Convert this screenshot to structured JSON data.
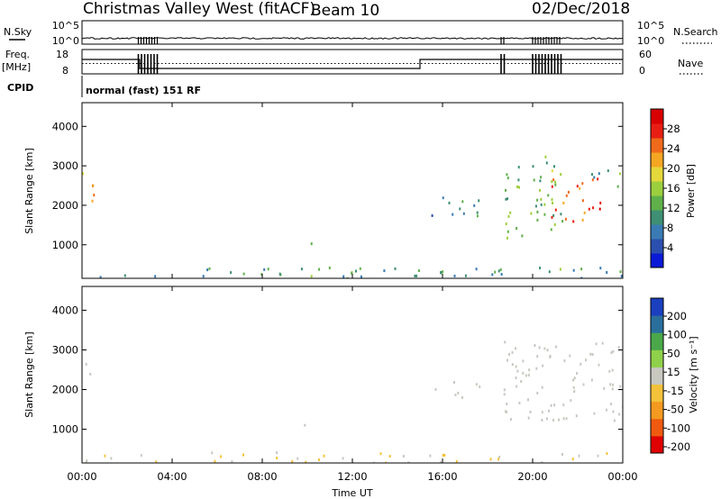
{
  "header": {
    "title": "Christmas Valley West (fitACF)",
    "beam": "Beam 10",
    "date": "02/Dec/2018",
    "nsky_label": "N.Sky",
    "nsearch_label": "N.Search",
    "freq_label_line1": "Freq.",
    "freq_label_line2": "[MHz]",
    "nave_label": "Nave",
    "cpid_label": "CPID",
    "cpid_value": "normal (fast) 151 RF",
    "noise_left_ticks": [
      "10^5",
      "10^0"
    ],
    "noise_right_ticks": [
      "10^5",
      "10^0"
    ],
    "freq_ticks": [
      "18",
      "8"
    ],
    "nave_ticks": [
      "60",
      "0"
    ]
  },
  "colors": {
    "power_scale": [
      "#0a1ad6",
      "#2b4fae",
      "#3a7bb4",
      "#3e8f73",
      "#5fb04a",
      "#9ccf3e",
      "#e5d83a",
      "#f5a623",
      "#ef6a1a",
      "#e81e14",
      "#d90000"
    ],
    "velocity_scale": [
      "#e00000",
      "#f05a10",
      "#f59a20",
      "#f4c23a",
      "#c8c8c0",
      "#8fd14a",
      "#4aa84a",
      "#2a6f9c",
      "#1a3fbf"
    ]
  },
  "chart_data": [
    {
      "type": "heatmap",
      "name": "power",
      "ylabel": "Slant Range [km]",
      "yticks": [
        "1000",
        "2000",
        "3000",
        "4000"
      ],
      "ylim": [
        150,
        4600
      ],
      "xlim": [
        0,
        24
      ],
      "colorbar_label": "Power [dB]",
      "colorbar_ticks": [
        "4",
        "8",
        "12",
        "16",
        "20",
        "24",
        "28"
      ],
      "colorbar_range": [
        0,
        32
      ],
      "features": [
        {
          "t0": 0.0,
          "t1": 0.6,
          "r0": 2100,
          "r1": 2900,
          "level": 22
        },
        {
          "t0": 0.0,
          "t1": 24.0,
          "r0": 180,
          "r1": 450,
          "level": 10
        },
        {
          "t0": 9.6,
          "t1": 10.2,
          "r0": 700,
          "r1": 1150,
          "level": 11
        },
        {
          "t0": 15.5,
          "t1": 17.8,
          "r0": 1700,
          "r1": 2250,
          "level": 9
        },
        {
          "t0": 18.7,
          "t1": 21.3,
          "r0": 1200,
          "r1": 3300,
          "level": 13
        },
        {
          "t0": 20.8,
          "t1": 23.0,
          "r0": 1600,
          "r1": 2700,
          "level": 27
        },
        {
          "t0": 22.5,
          "t1": 24.0,
          "r0": 2500,
          "r1": 3000,
          "level": 12
        }
      ]
    },
    {
      "type": "heatmap",
      "name": "velocity",
      "ylabel": "Slant Range [km]",
      "yticks": [
        "1000",
        "2000",
        "3000",
        "4000"
      ],
      "ylim": [
        150,
        4600
      ],
      "xlim": [
        0,
        24
      ],
      "colorbar_label": "Velocity [m s⁻¹]",
      "colorbar_ticks": [
        "200",
        "100",
        "50",
        "15",
        "-15",
        "-50",
        "-100",
        "-200"
      ],
      "features": [
        {
          "t0": 0.0,
          "t1": 0.6,
          "r0": 2100,
          "r1": 2900,
          "vel": 0
        },
        {
          "t0": 0.0,
          "t1": 24.0,
          "r0": 180,
          "r1": 450,
          "vel": -40
        },
        {
          "t0": 9.6,
          "t1": 10.2,
          "r0": 700,
          "r1": 1150,
          "vel": 0
        },
        {
          "t0": 15.5,
          "t1": 17.8,
          "r0": 1700,
          "r1": 2250,
          "vel": 0
        },
        {
          "t0": 18.7,
          "t1": 24.0,
          "r0": 1200,
          "r1": 3300,
          "vel": 0
        }
      ]
    }
  ],
  "xaxis": {
    "ticks": [
      "00:00",
      "04:00",
      "08:00",
      "12:00",
      "16:00",
      "20:00",
      "00:00"
    ],
    "label": "Time UT"
  }
}
